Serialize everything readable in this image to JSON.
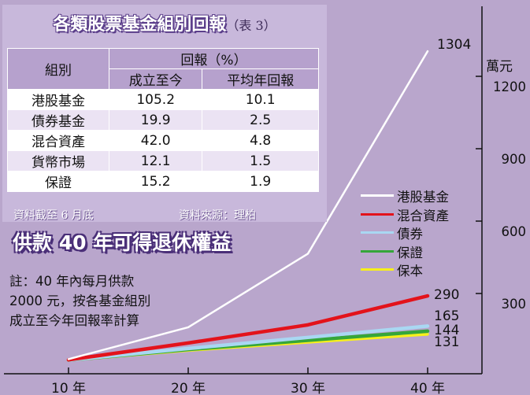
{
  "table": {
    "title": "各類股票基金組別回報",
    "title_sub": "（表 3）",
    "header_category": "組別",
    "header_return": "回報（%）",
    "header_col1": "成立至今",
    "header_col2": "平均年回報",
    "rows": [
      {
        "name": "港股基金",
        "since": "105.2",
        "annual": "10.1"
      },
      {
        "name": "債券基金",
        "since": "19.9",
        "annual": "2.5"
      },
      {
        "name": "混合資產",
        "since": "42.0",
        "annual": "4.8"
      },
      {
        "name": "貨幣市場",
        "since": "12.1",
        "annual": "1.5"
      },
      {
        "name": "保證",
        "since": "15.2",
        "annual": "1.9"
      }
    ],
    "note_date": "資料截至 6 月底",
    "note_source": "資料來源：理柏"
  },
  "headline": "供款 40 年可得退休權益",
  "footnote": {
    "line1": "註：40 年內每月供款",
    "line2": "2000 元，按各基金組別",
    "line3": "成立至今年回報率計算"
  },
  "chart_data": {
    "type": "line",
    "categories": [
      "10 年",
      "20 年",
      "30 年",
      "40 年"
    ],
    "x": [
      10,
      20,
      30,
      40
    ],
    "y_unit": "萬元",
    "ylim": [
      0,
      1350
    ],
    "yticks": [
      300,
      600,
      900,
      1200
    ],
    "series": [
      {
        "name": "港股基金",
        "color": "#ffffff",
        "values": [
          28,
          160,
          465,
          1304
        ],
        "end_label": "1304"
      },
      {
        "name": "混合資產",
        "color": "#e3131b",
        "values": [
          25,
          95,
          170,
          290
        ],
        "end_label": "290"
      },
      {
        "name": "債券",
        "color": "#a9d7f2",
        "values": [
          24,
          72,
          118,
          165
        ],
        "end_label": "165"
      },
      {
        "name": "保證",
        "color": "#35a63a",
        "values": [
          24,
          68,
          106,
          144
        ],
        "end_label": "144"
      },
      {
        "name": "保本",
        "color": "#f7f01b",
        "values": [
          23,
          64,
          98,
          131
        ],
        "end_label": "131"
      }
    ]
  }
}
